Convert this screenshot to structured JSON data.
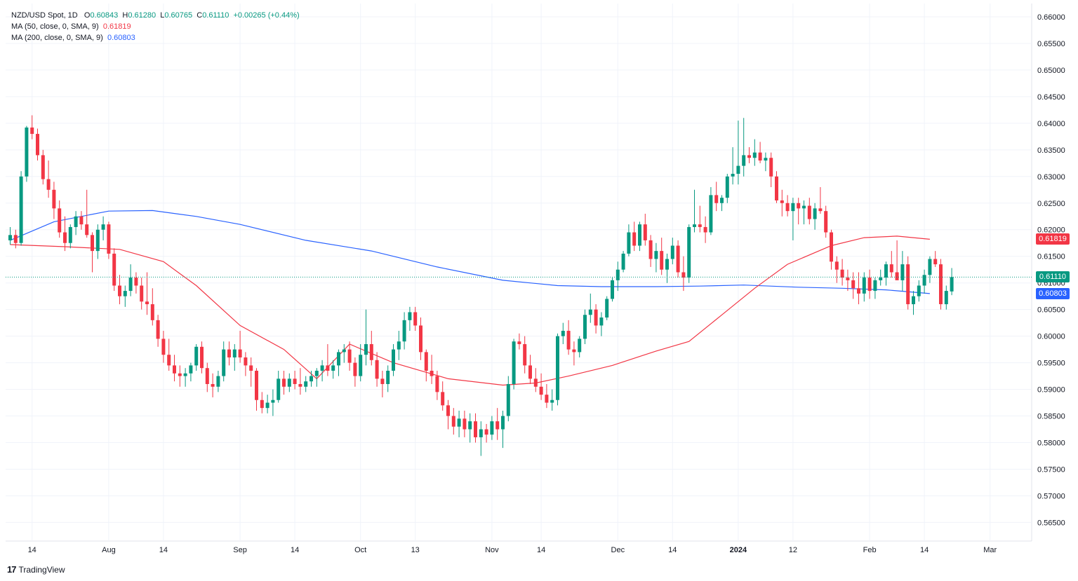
{
  "legend": {
    "symbol": "NZD/USD Spot, 1D",
    "o_label": "O",
    "o_value": "0.60843",
    "h_label": "H",
    "h_value": "0.61280",
    "l_label": "L",
    "l_value": "0.60765",
    "c_label": "C",
    "c_value": "0.61110",
    "change": "+0.00265 (+0.44%)",
    "ma50_label": "MA (50, close, 0, SMA, 9)",
    "ma50_value": "0.61819",
    "ma200_label": "MA (200, close, 0, SMA, 9)",
    "ma200_value": "0.60803"
  },
  "badges": {
    "last": "0.61110",
    "ma50": "0.61819",
    "ma200": "0.60803"
  },
  "branding": {
    "name": "TradingView",
    "mark": "17"
  },
  "colors": {
    "up": "#089981",
    "down": "#f23645",
    "ma50": "#f23645",
    "ma200": "#2962ff",
    "grid": "#f0f3fa"
  },
  "chart_data": {
    "type": "candlestick",
    "title": "NZD/USD Spot, 1D",
    "ylim": [
      0.5615,
      0.6625
    ],
    "y_ticks": [
      "0.66000",
      "0.65500",
      "0.65000",
      "0.64500",
      "0.64000",
      "0.63500",
      "0.63000",
      "0.62500",
      "0.62000",
      "0.61500",
      "0.61000",
      "0.60500",
      "0.60000",
      "0.59500",
      "0.59000",
      "0.58500",
      "0.58000",
      "0.57500",
      "0.57000",
      "0.56500"
    ],
    "x_ticks": [
      {
        "label": "14",
        "index": 4,
        "bold": false
      },
      {
        "label": "Aug",
        "index": 18,
        "bold": false
      },
      {
        "label": "14",
        "index": 28,
        "bold": false
      },
      {
        "label": "Sep",
        "index": 42,
        "bold": false
      },
      {
        "label": "14",
        "index": 52,
        "bold": false
      },
      {
        "label": "Oct",
        "index": 64,
        "bold": false
      },
      {
        "label": "13",
        "index": 74,
        "bold": false
      },
      {
        "label": "Nov",
        "index": 88,
        "bold": false
      },
      {
        "label": "14",
        "index": 97,
        "bold": false
      },
      {
        "label": "Dec",
        "index": 111,
        "bold": false
      },
      {
        "label": "14",
        "index": 121,
        "bold": false
      },
      {
        "label": "2024",
        "index": 133,
        "bold": true
      },
      {
        "label": "12",
        "index": 143,
        "bold": false
      },
      {
        "label": "Feb",
        "index": 157,
        "bold": false
      },
      {
        "label": "14",
        "index": 167,
        "bold": false
      },
      {
        "label": "Mar",
        "index": 179,
        "bold": false
      }
    ],
    "ohlc": [
      [
        0.618,
        0.6205,
        0.6172,
        0.619
      ],
      [
        0.619,
        0.62,
        0.6165,
        0.6175
      ],
      [
        0.6175,
        0.631,
        0.617,
        0.63
      ],
      [
        0.63,
        0.6395,
        0.629,
        0.6392
      ],
      [
        0.6392,
        0.6415,
        0.637,
        0.638
      ],
      [
        0.638,
        0.639,
        0.633,
        0.634
      ],
      [
        0.634,
        0.635,
        0.6285,
        0.6295
      ],
      [
        0.6295,
        0.633,
        0.626,
        0.6275
      ],
      [
        0.6275,
        0.629,
        0.622,
        0.624
      ],
      [
        0.624,
        0.6255,
        0.6185,
        0.6195
      ],
      [
        0.6195,
        0.6225,
        0.616,
        0.6175
      ],
      [
        0.6175,
        0.621,
        0.6165,
        0.6205
      ],
      [
        0.6205,
        0.6235,
        0.619,
        0.6225
      ],
      [
        0.6225,
        0.6235,
        0.62,
        0.621
      ],
      [
        0.621,
        0.6275,
        0.6185,
        0.619
      ],
      [
        0.619,
        0.6195,
        0.612,
        0.616
      ],
      [
        0.616,
        0.621,
        0.6145,
        0.62
      ],
      [
        0.62,
        0.6225,
        0.618,
        0.621
      ],
      [
        0.621,
        0.6215,
        0.6145,
        0.6155
      ],
      [
        0.6155,
        0.6165,
        0.6085,
        0.6095
      ],
      [
        0.6095,
        0.6115,
        0.606,
        0.6075
      ],
      [
        0.6075,
        0.6095,
        0.6055,
        0.6085
      ],
      [
        0.6085,
        0.6135,
        0.6075,
        0.611
      ],
      [
        0.611,
        0.612,
        0.608,
        0.6095
      ],
      [
        0.6095,
        0.611,
        0.605,
        0.6065
      ],
      [
        0.6065,
        0.612,
        0.604,
        0.606
      ],
      [
        0.606,
        0.609,
        0.602,
        0.603
      ],
      [
        0.603,
        0.604,
        0.598,
        0.5995
      ],
      [
        0.5995,
        0.601,
        0.595,
        0.5965
      ],
      [
        0.5965,
        0.5995,
        0.5935,
        0.5945
      ],
      [
        0.5945,
        0.5965,
        0.5915,
        0.593
      ],
      [
        0.593,
        0.5945,
        0.5905,
        0.5925
      ],
      [
        0.5925,
        0.594,
        0.5905,
        0.593
      ],
      [
        0.593,
        0.595,
        0.5915,
        0.5945
      ],
      [
        0.5945,
        0.5985,
        0.5935,
        0.598
      ],
      [
        0.598,
        0.599,
        0.593,
        0.594
      ],
      [
        0.594,
        0.595,
        0.5895,
        0.591
      ],
      [
        0.591,
        0.593,
        0.5885,
        0.5905
      ],
      [
        0.5905,
        0.5935,
        0.5895,
        0.5925
      ],
      [
        0.5925,
        0.599,
        0.5915,
        0.5975
      ],
      [
        0.5975,
        0.599,
        0.5945,
        0.596
      ],
      [
        0.596,
        0.5985,
        0.5935,
        0.5975
      ],
      [
        0.5975,
        0.601,
        0.595,
        0.596
      ],
      [
        0.596,
        0.597,
        0.5925,
        0.5945
      ],
      [
        0.5945,
        0.596,
        0.5905,
        0.5935
      ],
      [
        0.5935,
        0.594,
        0.586,
        0.588
      ],
      [
        0.588,
        0.5895,
        0.5855,
        0.5865
      ],
      [
        0.5865,
        0.589,
        0.5855,
        0.5875
      ],
      [
        0.5875,
        0.59,
        0.585,
        0.588
      ],
      [
        0.588,
        0.5935,
        0.5875,
        0.592
      ],
      [
        0.592,
        0.5935,
        0.589,
        0.5905
      ],
      [
        0.5905,
        0.593,
        0.5895,
        0.592
      ],
      [
        0.592,
        0.5935,
        0.59,
        0.591
      ],
      [
        0.591,
        0.594,
        0.589,
        0.5905
      ],
      [
        0.5905,
        0.5925,
        0.5895,
        0.5915
      ],
      [
        0.5915,
        0.5935,
        0.5905,
        0.5925
      ],
      [
        0.5925,
        0.594,
        0.5905,
        0.5935
      ],
      [
        0.5935,
        0.5955,
        0.5915,
        0.5945
      ],
      [
        0.5945,
        0.5985,
        0.5925,
        0.5935
      ],
      [
        0.5935,
        0.5955,
        0.592,
        0.5945
      ],
      [
        0.5945,
        0.5975,
        0.5925,
        0.597
      ],
      [
        0.597,
        0.5985,
        0.595,
        0.5975
      ],
      [
        0.5975,
        0.599,
        0.5935,
        0.595
      ],
      [
        0.595,
        0.596,
        0.5905,
        0.5925
      ],
      [
        0.5925,
        0.5985,
        0.5915,
        0.5965
      ],
      [
        0.5965,
        0.605,
        0.5945,
        0.5985
      ],
      [
        0.5985,
        0.601,
        0.5945,
        0.5955
      ],
      [
        0.5955,
        0.597,
        0.5905,
        0.592
      ],
      [
        0.592,
        0.5935,
        0.5885,
        0.591
      ],
      [
        0.591,
        0.5945,
        0.5895,
        0.5935
      ],
      [
        0.5935,
        0.5985,
        0.5925,
        0.5975
      ],
      [
        0.5975,
        0.601,
        0.5955,
        0.599
      ],
      [
        0.599,
        0.6045,
        0.5975,
        0.603
      ],
      [
        0.603,
        0.6055,
        0.601,
        0.6045
      ],
      [
        0.6045,
        0.6055,
        0.601,
        0.602
      ],
      [
        0.602,
        0.6035,
        0.5955,
        0.597
      ],
      [
        0.597,
        0.5975,
        0.5915,
        0.5935
      ],
      [
        0.5935,
        0.5965,
        0.591,
        0.5925
      ],
      [
        0.5925,
        0.5935,
        0.588,
        0.5895
      ],
      [
        0.5895,
        0.5915,
        0.586,
        0.587
      ],
      [
        0.587,
        0.588,
        0.5825,
        0.585
      ],
      [
        0.585,
        0.5865,
        0.5815,
        0.583
      ],
      [
        0.583,
        0.586,
        0.581,
        0.5845
      ],
      [
        0.5845,
        0.586,
        0.581,
        0.5825
      ],
      [
        0.5825,
        0.5855,
        0.58,
        0.584
      ],
      [
        0.584,
        0.5855,
        0.58,
        0.581
      ],
      [
        0.581,
        0.584,
        0.5775,
        0.5825
      ],
      [
        0.5825,
        0.5835,
        0.58,
        0.5815
      ],
      [
        0.5815,
        0.585,
        0.5805,
        0.584
      ],
      [
        0.584,
        0.5865,
        0.5805,
        0.5825
      ],
      [
        0.5825,
        0.586,
        0.579,
        0.585
      ],
      [
        0.585,
        0.5925,
        0.584,
        0.591
      ],
      [
        0.591,
        0.5995,
        0.59,
        0.599
      ],
      [
        0.599,
        0.6005,
        0.5975,
        0.5985
      ],
      [
        0.5985,
        0.6,
        0.593,
        0.5945
      ],
      [
        0.5945,
        0.5965,
        0.591,
        0.592
      ],
      [
        0.592,
        0.594,
        0.5895,
        0.5905
      ],
      [
        0.5905,
        0.593,
        0.588,
        0.589
      ],
      [
        0.589,
        0.591,
        0.5865,
        0.5875
      ],
      [
        0.5875,
        0.59,
        0.586,
        0.588
      ],
      [
        0.588,
        0.6005,
        0.587,
        0.6
      ],
      [
        0.6,
        0.6025,
        0.5985,
        0.601
      ],
      [
        0.601,
        0.603,
        0.5965,
        0.5975
      ],
      [
        0.5975,
        0.599,
        0.5945,
        0.597
      ],
      [
        0.597,
        0.6,
        0.596,
        0.5995
      ],
      [
        0.5995,
        0.605,
        0.5985,
        0.604
      ],
      [
        0.604,
        0.608,
        0.6025,
        0.605
      ],
      [
        0.605,
        0.606,
        0.6005,
        0.602
      ],
      [
        0.602,
        0.6045,
        0.6,
        0.6035
      ],
      [
        0.6035,
        0.6075,
        0.603,
        0.607
      ],
      [
        0.607,
        0.611,
        0.6065,
        0.6105
      ],
      [
        0.6105,
        0.614,
        0.6085,
        0.6125
      ],
      [
        0.6125,
        0.616,
        0.612,
        0.6155
      ],
      [
        0.6155,
        0.621,
        0.615,
        0.6195
      ],
      [
        0.6195,
        0.6215,
        0.616,
        0.617
      ],
      [
        0.617,
        0.6215,
        0.616,
        0.621
      ],
      [
        0.621,
        0.623,
        0.617,
        0.618
      ],
      [
        0.618,
        0.619,
        0.613,
        0.6145
      ],
      [
        0.6145,
        0.6175,
        0.612,
        0.616
      ],
      [
        0.616,
        0.6185,
        0.6115,
        0.6125
      ],
      [
        0.6125,
        0.6155,
        0.61,
        0.6145
      ],
      [
        0.6145,
        0.6185,
        0.6135,
        0.617
      ],
      [
        0.617,
        0.618,
        0.611,
        0.612
      ],
      [
        0.612,
        0.615,
        0.6085,
        0.611
      ],
      [
        0.611,
        0.621,
        0.61,
        0.6205
      ],
      [
        0.6205,
        0.6275,
        0.6195,
        0.621
      ],
      [
        0.621,
        0.6245,
        0.6195,
        0.6205
      ],
      [
        0.6205,
        0.6225,
        0.6175,
        0.6195
      ],
      [
        0.6195,
        0.628,
        0.619,
        0.6265
      ],
      [
        0.6265,
        0.629,
        0.6235,
        0.625
      ],
      [
        0.625,
        0.6265,
        0.6235,
        0.626
      ],
      [
        0.626,
        0.6305,
        0.625,
        0.63
      ],
      [
        0.63,
        0.6355,
        0.6285,
        0.6305
      ],
      [
        0.6305,
        0.6405,
        0.6285,
        0.632
      ],
      [
        0.632,
        0.641,
        0.63,
        0.634
      ],
      [
        0.634,
        0.6355,
        0.6325,
        0.6335
      ],
      [
        0.6335,
        0.637,
        0.632,
        0.6345
      ],
      [
        0.6345,
        0.6365,
        0.6325,
        0.633
      ],
      [
        0.633,
        0.6345,
        0.631,
        0.6335
      ],
      [
        0.6335,
        0.6345,
        0.628,
        0.63
      ],
      [
        0.63,
        0.631,
        0.625,
        0.6255
      ],
      [
        0.6255,
        0.6275,
        0.6225,
        0.625
      ],
      [
        0.625,
        0.6265,
        0.6225,
        0.6235
      ],
      [
        0.6235,
        0.626,
        0.618,
        0.625
      ],
      [
        0.625,
        0.626,
        0.621,
        0.624
      ],
      [
        0.624,
        0.6255,
        0.621,
        0.6245
      ],
      [
        0.6245,
        0.626,
        0.621,
        0.622
      ],
      [
        0.622,
        0.625,
        0.62,
        0.624
      ],
      [
        0.624,
        0.628,
        0.623,
        0.6235
      ],
      [
        0.6235,
        0.6245,
        0.6185,
        0.6195
      ],
      [
        0.6195,
        0.62,
        0.6125,
        0.614
      ],
      [
        0.614,
        0.615,
        0.61,
        0.6125
      ],
      [
        0.6125,
        0.6145,
        0.6095,
        0.611
      ],
      [
        0.611,
        0.6125,
        0.6085,
        0.6105
      ],
      [
        0.6105,
        0.612,
        0.607,
        0.609
      ],
      [
        0.609,
        0.612,
        0.606,
        0.608
      ],
      [
        0.608,
        0.612,
        0.6065,
        0.611
      ],
      [
        0.611,
        0.6125,
        0.607,
        0.6085
      ],
      [
        0.6085,
        0.611,
        0.607,
        0.6105
      ],
      [
        0.6105,
        0.6125,
        0.6095,
        0.611
      ],
      [
        0.611,
        0.614,
        0.6095,
        0.6135
      ],
      [
        0.6135,
        0.616,
        0.611,
        0.612
      ],
      [
        0.612,
        0.618,
        0.611,
        0.6105
      ],
      [
        0.6105,
        0.616,
        0.6085,
        0.6135
      ],
      [
        0.6135,
        0.615,
        0.605,
        0.606
      ],
      [
        0.606,
        0.6085,
        0.604,
        0.6075
      ],
      [
        0.6075,
        0.6105,
        0.6065,
        0.6095
      ],
      [
        0.6095,
        0.6125,
        0.608,
        0.6115
      ],
      [
        0.6115,
        0.615,
        0.61,
        0.6145
      ],
      [
        0.6145,
        0.616,
        0.613,
        0.6135
      ],
      [
        0.6135,
        0.6145,
        0.605,
        0.606
      ],
      [
        0.606,
        0.6095,
        0.605,
        0.6085
      ],
      [
        0.6084,
        0.6128,
        0.6077,
        0.6111
      ]
    ],
    "ma50": [
      [
        0,
        0.6172
      ],
      [
        10,
        0.6168
      ],
      [
        20,
        0.6163
      ],
      [
        28,
        0.614
      ],
      [
        34,
        0.6095
      ],
      [
        42,
        0.602
      ],
      [
        50,
        0.5975
      ],
      [
        56,
        0.592
      ],
      [
        62,
        0.5985
      ],
      [
        70,
        0.595
      ],
      [
        80,
        0.592
      ],
      [
        90,
        0.5908
      ],
      [
        96,
        0.5912
      ],
      [
        102,
        0.5925
      ],
      [
        110,
        0.5945
      ],
      [
        118,
        0.5972
      ],
      [
        124,
        0.599
      ],
      [
        130,
        0.604
      ],
      [
        136,
        0.609
      ],
      [
        142,
        0.6135
      ],
      [
        150,
        0.617
      ],
      [
        156,
        0.6185
      ],
      [
        162,
        0.6188
      ],
      [
        168,
        0.6182
      ]
    ],
    "ma200": [
      [
        0,
        0.618
      ],
      [
        8,
        0.6215
      ],
      [
        18,
        0.6235
      ],
      [
        26,
        0.6236
      ],
      [
        34,
        0.6225
      ],
      [
        42,
        0.621
      ],
      [
        54,
        0.618
      ],
      [
        66,
        0.616
      ],
      [
        78,
        0.613
      ],
      [
        90,
        0.6105
      ],
      [
        100,
        0.6095
      ],
      [
        108,
        0.6093
      ],
      [
        118,
        0.6093
      ],
      [
        126,
        0.6094
      ],
      [
        134,
        0.6096
      ],
      [
        144,
        0.6092
      ],
      [
        152,
        0.609
      ],
      [
        160,
        0.6087
      ],
      [
        168,
        0.608
      ]
    ]
  }
}
